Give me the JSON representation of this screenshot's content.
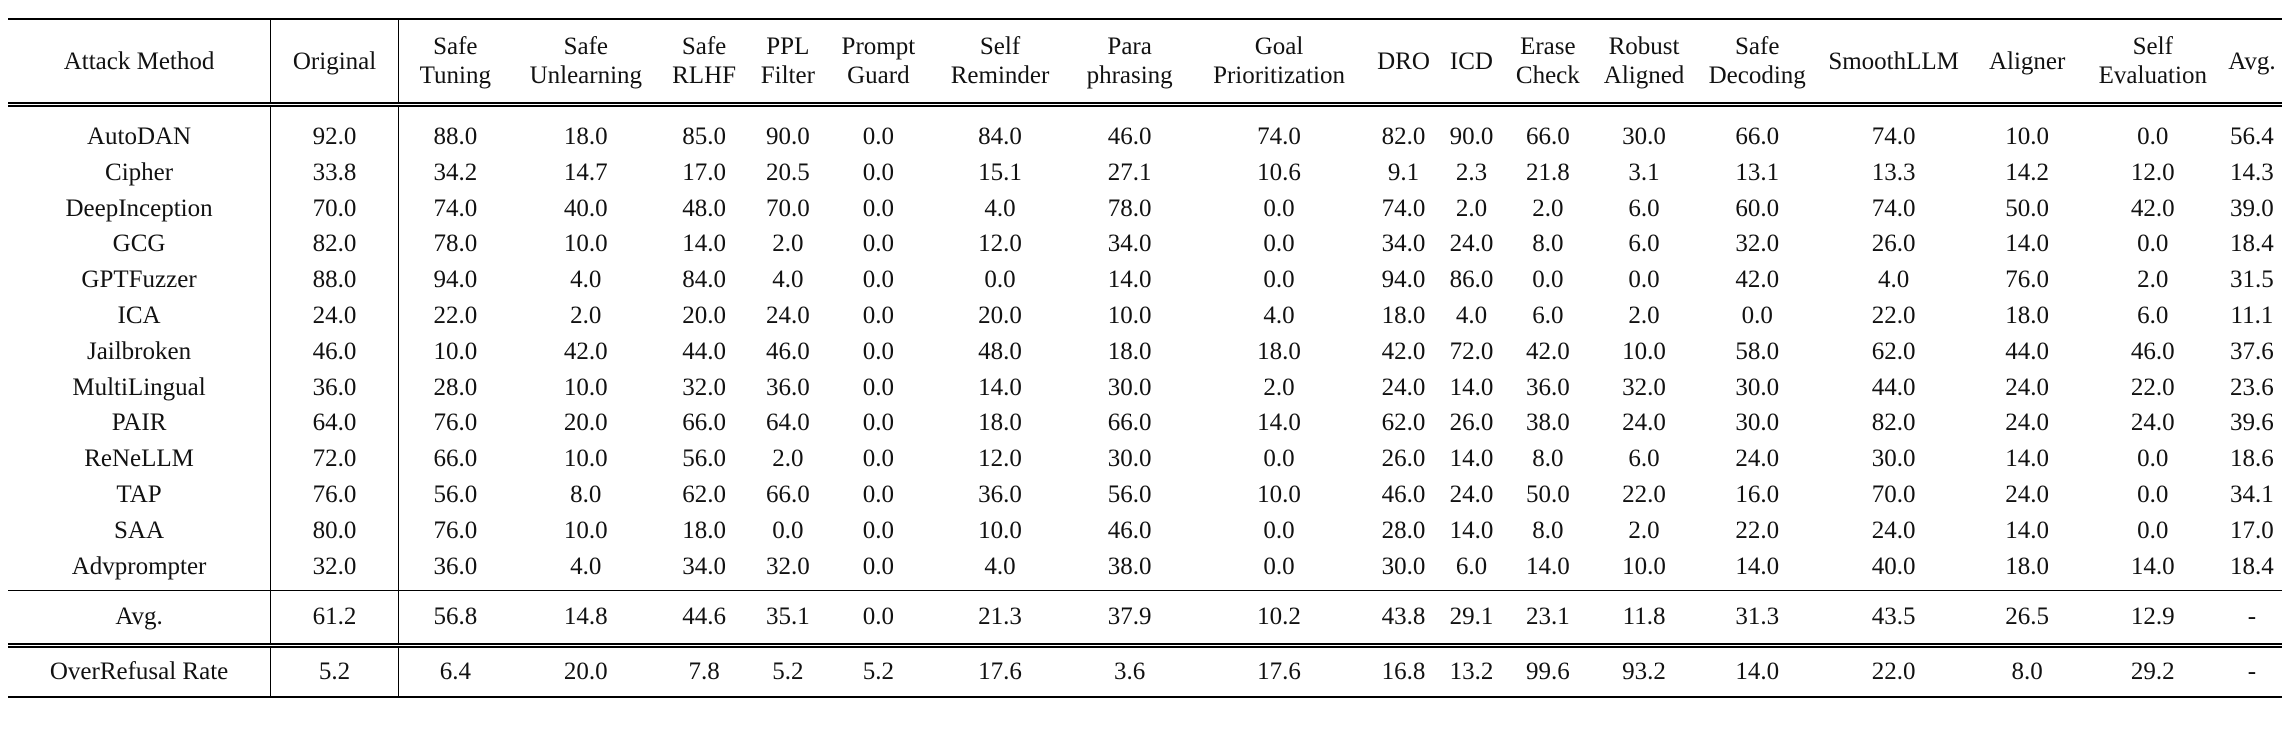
{
  "columns": [
    [
      "Attack Method"
    ],
    [
      "Original"
    ],
    [
      "Safe",
      "Tuning"
    ],
    [
      "Safe",
      "Unlearning"
    ],
    [
      "Safe",
      "RLHF"
    ],
    [
      "PPL",
      "Filter"
    ],
    [
      "Prompt",
      "Guard"
    ],
    [
      "Self",
      "Reminder"
    ],
    [
      "Para",
      "phrasing"
    ],
    [
      "Goal",
      "Prioritization"
    ],
    [
      "DRO"
    ],
    [
      "ICD"
    ],
    [
      "Erase",
      "Check"
    ],
    [
      "Robust",
      "Aligned"
    ],
    [
      "Safe",
      "Decoding"
    ],
    [
      "SmoothLLM"
    ],
    [
      "Aligner"
    ],
    [
      "Self",
      "Evaluation"
    ],
    [
      "Avg."
    ]
  ],
  "rows": [
    [
      "AutoDAN",
      "92.0",
      "88.0",
      "18.0",
      "85.0",
      "90.0",
      "0.0",
      "84.0",
      "46.0",
      "74.0",
      "82.0",
      "90.0",
      "66.0",
      "30.0",
      "66.0",
      "74.0",
      "10.0",
      "0.0",
      "56.4"
    ],
    [
      "Cipher",
      "33.8",
      "34.2",
      "14.7",
      "17.0",
      "20.5",
      "0.0",
      "15.1",
      "27.1",
      "10.6",
      "9.1",
      "2.3",
      "21.8",
      "3.1",
      "13.1",
      "13.3",
      "14.2",
      "12.0",
      "14.3"
    ],
    [
      "DeepInception",
      "70.0",
      "74.0",
      "40.0",
      "48.0",
      "70.0",
      "0.0",
      "4.0",
      "78.0",
      "0.0",
      "74.0",
      "2.0",
      "2.0",
      "6.0",
      "60.0",
      "74.0",
      "50.0",
      "42.0",
      "39.0"
    ],
    [
      "GCG",
      "82.0",
      "78.0",
      "10.0",
      "14.0",
      "2.0",
      "0.0",
      "12.0",
      "34.0",
      "0.0",
      "34.0",
      "24.0",
      "8.0",
      "6.0",
      "32.0",
      "26.0",
      "14.0",
      "0.0",
      "18.4"
    ],
    [
      "GPTFuzzer",
      "88.0",
      "94.0",
      "4.0",
      "84.0",
      "4.0",
      "0.0",
      "0.0",
      "14.0",
      "0.0",
      "94.0",
      "86.0",
      "0.0",
      "0.0",
      "42.0",
      "4.0",
      "76.0",
      "2.0",
      "31.5"
    ],
    [
      "ICA",
      "24.0",
      "22.0",
      "2.0",
      "20.0",
      "24.0",
      "0.0",
      "20.0",
      "10.0",
      "4.0",
      "18.0",
      "4.0",
      "6.0",
      "2.0",
      "0.0",
      "22.0",
      "18.0",
      "6.0",
      "11.1"
    ],
    [
      "Jailbroken",
      "46.0",
      "10.0",
      "42.0",
      "44.0",
      "46.0",
      "0.0",
      "48.0",
      "18.0",
      "18.0",
      "42.0",
      "72.0",
      "42.0",
      "10.0",
      "58.0",
      "62.0",
      "44.0",
      "46.0",
      "37.6"
    ],
    [
      "MultiLingual",
      "36.0",
      "28.0",
      "10.0",
      "32.0",
      "36.0",
      "0.0",
      "14.0",
      "30.0",
      "2.0",
      "24.0",
      "14.0",
      "36.0",
      "32.0",
      "30.0",
      "44.0",
      "24.0",
      "22.0",
      "23.6"
    ],
    [
      "PAIR",
      "64.0",
      "76.0",
      "20.0",
      "66.0",
      "64.0",
      "0.0",
      "18.0",
      "66.0",
      "14.0",
      "62.0",
      "26.0",
      "38.0",
      "24.0",
      "30.0",
      "82.0",
      "24.0",
      "24.0",
      "39.6"
    ],
    [
      "ReNeLLM",
      "72.0",
      "66.0",
      "10.0",
      "56.0",
      "2.0",
      "0.0",
      "12.0",
      "30.0",
      "0.0",
      "26.0",
      "14.0",
      "8.0",
      "6.0",
      "24.0",
      "30.0",
      "14.0",
      "0.0",
      "18.6"
    ],
    [
      "TAP",
      "76.0",
      "56.0",
      "8.0",
      "62.0",
      "66.0",
      "0.0",
      "36.0",
      "56.0",
      "10.0",
      "46.0",
      "24.0",
      "50.0",
      "22.0",
      "16.0",
      "70.0",
      "24.0",
      "0.0",
      "34.1"
    ],
    [
      "SAA",
      "80.0",
      "76.0",
      "10.0",
      "18.0",
      "0.0",
      "0.0",
      "10.0",
      "46.0",
      "0.0",
      "28.0",
      "14.0",
      "8.0",
      "2.0",
      "22.0",
      "24.0",
      "14.0",
      "0.0",
      "17.0"
    ],
    [
      "Advprompter",
      "32.0",
      "36.0",
      "4.0",
      "34.0",
      "32.0",
      "0.0",
      "4.0",
      "38.0",
      "0.0",
      "30.0",
      "6.0",
      "14.0",
      "10.0",
      "14.0",
      "40.0",
      "18.0",
      "14.0",
      "18.4"
    ]
  ],
  "avg_row": [
    "Avg.",
    "61.2",
    "56.8",
    "14.8",
    "44.6",
    "35.1",
    "0.0",
    "21.3",
    "37.9",
    "10.2",
    "43.8",
    "29.1",
    "23.1",
    "11.8",
    "31.3",
    "43.5",
    "26.5",
    "12.9",
    "-"
  ],
  "overrefusal_row": [
    "OverRefusal Rate",
    "5.2",
    "6.4",
    "20.0",
    "7.8",
    "5.2",
    "5.2",
    "17.6",
    "3.6",
    "17.6",
    "16.8",
    "13.2",
    "99.6",
    "93.2",
    "14.0",
    "22.0",
    "8.0",
    "29.2",
    "-"
  ]
}
